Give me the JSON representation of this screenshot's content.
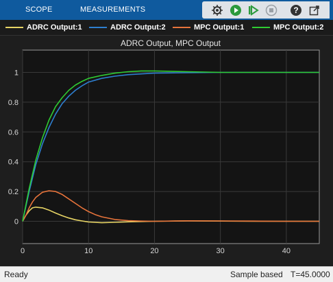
{
  "toolbar": {
    "tabs": [
      {
        "label": "SCOPE"
      },
      {
        "label": "MEASUREMENTS"
      }
    ],
    "buttons": [
      {
        "icon": "settings-icon"
      },
      {
        "icon": "run-icon"
      },
      {
        "icon": "step-forward-icon"
      },
      {
        "icon": "stop-icon"
      },
      {
        "icon": "help-icon"
      },
      {
        "icon": "undock-icon"
      }
    ]
  },
  "colors": {
    "adrc1": "#e8d565",
    "adrc2": "#2e7fd0",
    "mpc1": "#e8743b",
    "mpc2": "#2fcc33"
  },
  "legend": [
    {
      "label": "ADRC Output:1",
      "color": "#e8d565"
    },
    {
      "label": "ADRC Output:2",
      "color": "#2e7fd0"
    },
    {
      "label": "MPC Output:1",
      "color": "#e8743b"
    },
    {
      "label": "MPC Output:2",
      "color": "#2fcc33"
    }
  ],
  "chart_data": {
    "type": "line",
    "title": "ADRC Output, MPC Output",
    "xlim": [
      0,
      45
    ],
    "ylim": [
      -0.15,
      1.15
    ],
    "xticks": [
      0,
      10,
      20,
      30,
      40
    ],
    "yticks": [
      0,
      0.2,
      0.4,
      0.6,
      0.8,
      1
    ],
    "ytick_labels": [
      "0",
      "0.2",
      "0.4",
      "0.6",
      "0.8",
      "1"
    ],
    "grid": true,
    "series": [
      {
        "name": "ADRC Output:1",
        "x": [
          0,
          0.5,
          1,
          1.5,
          2,
          3,
          4,
          5,
          6,
          7,
          8,
          9,
          10,
          12,
          14,
          16,
          20,
          25,
          30,
          35,
          40,
          45
        ],
        "y": [
          0,
          0.04,
          0.07,
          0.09,
          0.095,
          0.09,
          0.075,
          0.055,
          0.037,
          0.022,
          0.01,
          0.002,
          -0.005,
          -0.01,
          -0.007,
          -0.004,
          0,
          0.002,
          0.001,
          0,
          0,
          0
        ]
      },
      {
        "name": "ADRC Output:2",
        "x": [
          0,
          1,
          2,
          3,
          4,
          5,
          6,
          7,
          8,
          9,
          10,
          12,
          14,
          16,
          18,
          20,
          25,
          30,
          35,
          40,
          45
        ],
        "y": [
          0,
          0.2,
          0.38,
          0.52,
          0.63,
          0.72,
          0.79,
          0.84,
          0.88,
          0.91,
          0.935,
          0.96,
          0.975,
          0.985,
          0.99,
          0.995,
          0.998,
          1.0,
          1.0,
          1.0,
          1.0
        ]
      },
      {
        "name": "MPC Output:1",
        "x": [
          0,
          0.5,
          1,
          1.5,
          2,
          3,
          4,
          5,
          6,
          7,
          8,
          9,
          10,
          11,
          12,
          14,
          16,
          18,
          20,
          25,
          30,
          35,
          40,
          45
        ],
        "y": [
          0,
          0.04,
          0.09,
          0.13,
          0.16,
          0.195,
          0.205,
          0.2,
          0.18,
          0.15,
          0.12,
          0.09,
          0.065,
          0.045,
          0.03,
          0.012,
          0.004,
          0.001,
          0,
          0.003,
          0.002,
          0.001,
          0,
          0
        ]
      },
      {
        "name": "MPC Output:2",
        "x": [
          0,
          1,
          2,
          3,
          4,
          5,
          6,
          7,
          8,
          9,
          10,
          12,
          14,
          16,
          18,
          20,
          25,
          30,
          35,
          40,
          45
        ],
        "y": [
          0,
          0.22,
          0.41,
          0.56,
          0.68,
          0.77,
          0.83,
          0.88,
          0.915,
          0.94,
          0.96,
          0.98,
          0.995,
          1.005,
          1.01,
          1.01,
          1.005,
          1.0,
          1.0,
          1.0,
          1.0
        ]
      }
    ]
  },
  "status": {
    "left": "Ready",
    "mode": "Sample based",
    "time": "T=45.0000"
  }
}
